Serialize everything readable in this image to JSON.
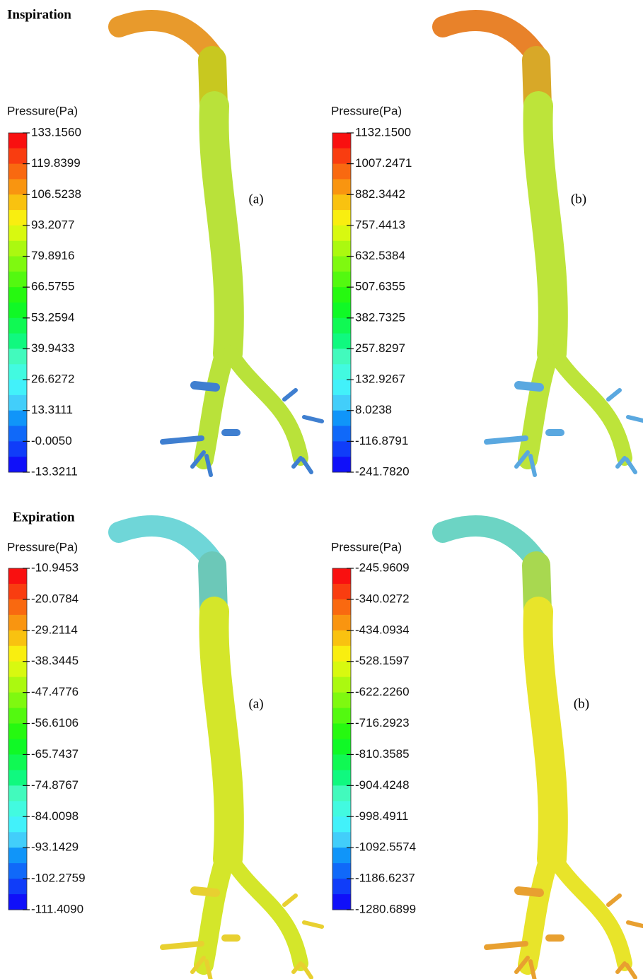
{
  "sections": [
    {
      "title": "Inspiration",
      "panels": [
        {
          "legend_title": "Pressure(Pa)",
          "label": "(a)",
          "ticks": [
            "133.1560",
            "119.8399",
            "106.5238",
            "93.2077",
            "79.8916",
            "66.5755",
            "53.2594",
            "39.9433",
            "26.6272",
            "13.3111",
            "-0.0050",
            "-13.3211"
          ]
        },
        {
          "legend_title": "Pressure(Pa)",
          "label": "(b)",
          "ticks": [
            "1132.1500",
            "1007.2471",
            "882.3442",
            "757.4413",
            "632.5384",
            "507.6355",
            "382.7325",
            "257.8297",
            "132.9267",
            "8.0238",
            "-116.8791",
            "-241.7820"
          ]
        }
      ]
    },
    {
      "title": "Expiration",
      "panels": [
        {
          "legend_title": "Pressure(Pa)",
          "label": "(a)",
          "ticks": [
            "-10.9453",
            "-20.0784",
            "-29.2114",
            "-38.3445",
            "-47.4776",
            "-56.6106",
            "-65.7437",
            "-74.8767",
            "-84.0098",
            "-93.1429",
            "-102.2759",
            "-111.4090"
          ]
        },
        {
          "legend_title": "Pressure(Pa)",
          "label": "(b)",
          "ticks": [
            "-245.9609",
            "-340.0272",
            "-434.0934",
            "-528.1597",
            "-622.2260",
            "-716.2923",
            "-810.3585",
            "-904.4248",
            "-998.4911",
            "-1092.5574",
            "-1186.6237",
            "-1280.6899"
          ]
        }
      ]
    }
  ]
}
